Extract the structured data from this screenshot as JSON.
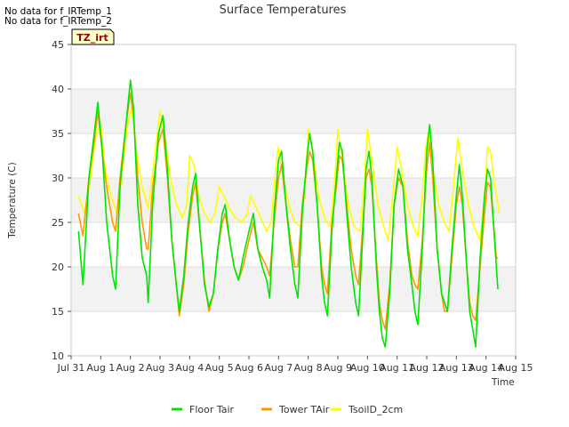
{
  "notes": [
    "No data for f_IRTemp_1",
    "No data for f_IRTemp_2"
  ],
  "badge": "TZ_irt",
  "colors": {
    "floor": "#00e600",
    "tower": "#ff9900",
    "tsoil": "#ffff00",
    "band": "#f2f2f2",
    "grid": "#dddddd",
    "badge_bg": "#ffffcc",
    "badge_text": "#990000"
  },
  "chart_data": {
    "type": "line",
    "title": "Surface Temperatures",
    "xlabel": "Time",
    "ylabel": "Temperature (C)",
    "ylim": [
      10,
      45
    ],
    "xlim": [
      0,
      15
    ],
    "yticks": [
      10,
      15,
      20,
      25,
      30,
      35,
      40,
      45
    ],
    "xticks": [
      {
        "x": 0,
        "label": "Jul 31"
      },
      {
        "x": 1,
        "label": "Aug 1"
      },
      {
        "x": 2,
        "label": "Aug 2"
      },
      {
        "x": 3,
        "label": "Aug 3"
      },
      {
        "x": 4,
        "label": "Aug 4"
      },
      {
        "x": 5,
        "label": "Aug 5"
      },
      {
        "x": 6,
        "label": "Aug 6"
      },
      {
        "x": 7,
        "label": "Aug 7"
      },
      {
        "x": 8,
        "label": "Aug 8"
      },
      {
        "x": 9,
        "label": "Aug 9"
      },
      {
        "x": 10,
        "label": "Aug 10"
      },
      {
        "x": 11,
        "label": "Aug 11"
      },
      {
        "x": 12,
        "label": "Aug 12"
      },
      {
        "x": 13,
        "label": "Aug 13"
      },
      {
        "x": 14,
        "label": "Aug 14"
      },
      {
        "x": 15,
        "label": "Aug 15"
      }
    ],
    "grid": true,
    "legend_position": "bottom",
    "series": [
      {
        "name": "Floor Tair",
        "color": "#00e600",
        "points": [
          [
            0.25,
            24
          ],
          [
            0.4,
            18
          ],
          [
            0.6,
            30
          ],
          [
            0.78,
            35
          ],
          [
            0.9,
            38.5
          ],
          [
            1.05,
            33
          ],
          [
            1.2,
            25
          ],
          [
            1.4,
            19
          ],
          [
            1.5,
            17.5
          ],
          [
            1.65,
            29
          ],
          [
            1.85,
            36
          ],
          [
            2.0,
            41
          ],
          [
            2.1,
            38
          ],
          [
            2.25,
            27
          ],
          [
            2.4,
            21
          ],
          [
            2.55,
            19
          ],
          [
            2.6,
            16
          ],
          [
            2.75,
            27
          ],
          [
            2.95,
            35
          ],
          [
            3.1,
            37
          ],
          [
            3.25,
            31
          ],
          [
            3.4,
            23
          ],
          [
            3.55,
            18
          ],
          [
            3.65,
            15
          ],
          [
            3.8,
            19
          ],
          [
            3.95,
            25
          ],
          [
            4.1,
            29
          ],
          [
            4.2,
            30.5
          ],
          [
            4.35,
            24
          ],
          [
            4.5,
            18
          ],
          [
            4.65,
            15.5
          ],
          [
            4.8,
            17
          ],
          [
            4.95,
            22
          ],
          [
            5.1,
            26
          ],
          [
            5.2,
            27
          ],
          [
            5.35,
            23
          ],
          [
            5.5,
            20
          ],
          [
            5.65,
            18.5
          ],
          [
            5.8,
            21
          ],
          [
            6.0,
            24
          ],
          [
            6.15,
            26
          ],
          [
            6.3,
            22
          ],
          [
            6.45,
            20
          ],
          [
            6.6,
            18.5
          ],
          [
            6.7,
            16.5
          ],
          [
            6.85,
            26
          ],
          [
            7.0,
            32
          ],
          [
            7.1,
            33
          ],
          [
            7.25,
            27
          ],
          [
            7.4,
            22
          ],
          [
            7.55,
            18
          ],
          [
            7.65,
            16.5
          ],
          [
            7.8,
            26
          ],
          [
            7.95,
            32
          ],
          [
            8.05,
            35
          ],
          [
            8.15,
            33
          ],
          [
            8.3,
            27
          ],
          [
            8.45,
            19
          ],
          [
            8.55,
            16
          ],
          [
            8.65,
            14.5
          ],
          [
            8.8,
            24
          ],
          [
            8.95,
            30
          ],
          [
            9.05,
            34
          ],
          [
            9.15,
            33
          ],
          [
            9.3,
            26
          ],
          [
            9.45,
            20
          ],
          [
            9.6,
            16
          ],
          [
            9.7,
            14.5
          ],
          [
            9.85,
            24
          ],
          [
            9.95,
            31
          ],
          [
            10.05,
            33
          ],
          [
            10.15,
            30
          ],
          [
            10.3,
            20
          ],
          [
            10.4,
            15
          ],
          [
            10.5,
            12
          ],
          [
            10.6,
            11
          ],
          [
            10.75,
            17
          ],
          [
            10.9,
            27
          ],
          [
            11.05,
            31
          ],
          [
            11.2,
            29
          ],
          [
            11.35,
            22
          ],
          [
            11.5,
            18
          ],
          [
            11.6,
            15
          ],
          [
            11.7,
            13.5
          ],
          [
            11.85,
            22
          ],
          [
            12.0,
            33
          ],
          [
            12.1,
            36
          ],
          [
            12.2,
            32
          ],
          [
            12.35,
            22
          ],
          [
            12.5,
            17
          ],
          [
            12.6,
            16
          ],
          [
            12.7,
            15
          ],
          [
            12.85,
            22
          ],
          [
            13.0,
            28
          ],
          [
            13.1,
            31.5
          ],
          [
            13.2,
            28
          ],
          [
            13.35,
            20
          ],
          [
            13.45,
            15
          ],
          [
            13.55,
            13
          ],
          [
            13.65,
            11
          ],
          [
            13.8,
            21
          ],
          [
            13.95,
            28
          ],
          [
            14.05,
            31
          ],
          [
            14.15,
            30
          ],
          [
            14.25,
            25
          ],
          [
            14.35,
            20
          ],
          [
            14.4,
            17.5
          ]
        ]
      },
      {
        "name": "Tower TAir",
        "color": "#ff9900",
        "points": [
          [
            0.25,
            26
          ],
          [
            0.4,
            23.5
          ],
          [
            0.6,
            30
          ],
          [
            0.78,
            34
          ],
          [
            0.9,
            37.5
          ],
          [
            1.05,
            33
          ],
          [
            1.2,
            29
          ],
          [
            1.4,
            25
          ],
          [
            1.5,
            24
          ],
          [
            1.65,
            30
          ],
          [
            1.85,
            36
          ],
          [
            2.0,
            39.5
          ],
          [
            2.1,
            37
          ],
          [
            2.25,
            30
          ],
          [
            2.4,
            25
          ],
          [
            2.55,
            22
          ],
          [
            2.6,
            22
          ],
          [
            2.75,
            29
          ],
          [
            2.95,
            34
          ],
          [
            3.1,
            35.5
          ],
          [
            3.25,
            30
          ],
          [
            3.4,
            23
          ],
          [
            3.55,
            18
          ],
          [
            3.65,
            14.5
          ],
          [
            3.8,
            18
          ],
          [
            3.95,
            24
          ],
          [
            4.1,
            28
          ],
          [
            4.2,
            29.5
          ],
          [
            4.35,
            24
          ],
          [
            4.5,
            18.5
          ],
          [
            4.65,
            15
          ],
          [
            4.8,
            17
          ],
          [
            4.95,
            22
          ],
          [
            5.1,
            25
          ],
          [
            5.2,
            26
          ],
          [
            5.35,
            23
          ],
          [
            5.5,
            20
          ],
          [
            5.65,
            18.5
          ],
          [
            5.8,
            20
          ],
          [
            6.0,
            23
          ],
          [
            6.15,
            25
          ],
          [
            6.3,
            22
          ],
          [
            6.45,
            21
          ],
          [
            6.6,
            20
          ],
          [
            6.7,
            19
          ],
          [
            6.85,
            25
          ],
          [
            7.0,
            30
          ],
          [
            7.1,
            31.5
          ],
          [
            7.25,
            27
          ],
          [
            7.4,
            23
          ],
          [
            7.55,
            20
          ],
          [
            7.65,
            20
          ],
          [
            7.8,
            27
          ],
          [
            7.95,
            31
          ],
          [
            8.05,
            33
          ],
          [
            8.15,
            32
          ],
          [
            8.3,
            27
          ],
          [
            8.45,
            20
          ],
          [
            8.55,
            18
          ],
          [
            8.65,
            17
          ],
          [
            8.8,
            25
          ],
          [
            8.95,
            29
          ],
          [
            9.05,
            32.5
          ],
          [
            9.15,
            32
          ],
          [
            9.3,
            27
          ],
          [
            9.45,
            22
          ],
          [
            9.6,
            19
          ],
          [
            9.7,
            18
          ],
          [
            9.85,
            25
          ],
          [
            9.95,
            30
          ],
          [
            10.05,
            31
          ],
          [
            10.15,
            29
          ],
          [
            10.3,
            21
          ],
          [
            10.4,
            16
          ],
          [
            10.5,
            14
          ],
          [
            10.6,
            13
          ],
          [
            10.75,
            18
          ],
          [
            10.9,
            27
          ],
          [
            11.05,
            30
          ],
          [
            11.2,
            29
          ],
          [
            11.35,
            23
          ],
          [
            11.5,
            19
          ],
          [
            11.6,
            18
          ],
          [
            11.7,
            17.5
          ],
          [
            11.85,
            23
          ],
          [
            12.0,
            31
          ],
          [
            12.1,
            34
          ],
          [
            12.2,
            30
          ],
          [
            12.35,
            22
          ],
          [
            12.5,
            17
          ],
          [
            12.6,
            15
          ],
          [
            12.7,
            15
          ],
          [
            12.85,
            21
          ],
          [
            13.0,
            27
          ],
          [
            13.1,
            29
          ],
          [
            13.2,
            27
          ],
          [
            13.35,
            20
          ],
          [
            13.45,
            16
          ],
          [
            13.55,
            14.5
          ],
          [
            13.65,
            14
          ],
          [
            13.8,
            20
          ],
          [
            13.95,
            26
          ],
          [
            14.05,
            29.5
          ],
          [
            14.15,
            29
          ],
          [
            14.25,
            25
          ],
          [
            14.35,
            21
          ],
          [
            14.4,
            21
          ]
        ]
      },
      {
        "name": "TsoilD_2cm",
        "color": "#ffff00",
        "points": [
          [
            0.25,
            28
          ],
          [
            0.45,
            26
          ],
          [
            0.65,
            30
          ],
          [
            0.85,
            35
          ],
          [
            1.0,
            36
          ],
          [
            1.15,
            31
          ],
          [
            1.35,
            28
          ],
          [
            1.55,
            26
          ],
          [
            1.7,
            30
          ],
          [
            1.9,
            36
          ],
          [
            2.05,
            38
          ],
          [
            2.2,
            33
          ],
          [
            2.4,
            29
          ],
          [
            2.6,
            26.5
          ],
          [
            2.8,
            32
          ],
          [
            3.0,
            37.5
          ],
          [
            3.15,
            35
          ],
          [
            3.35,
            30
          ],
          [
            3.55,
            27
          ],
          [
            3.75,
            25.5
          ],
          [
            3.9,
            27
          ],
          [
            4.0,
            32.5
          ],
          [
            4.15,
            31.5
          ],
          [
            4.3,
            28
          ],
          [
            4.5,
            26
          ],
          [
            4.7,
            25
          ],
          [
            4.85,
            26
          ],
          [
            5.0,
            29
          ],
          [
            5.15,
            28
          ],
          [
            5.35,
            26.5
          ],
          [
            5.55,
            25.5
          ],
          [
            5.75,
            25
          ],
          [
            5.95,
            26
          ],
          [
            6.05,
            28
          ],
          [
            6.2,
            27
          ],
          [
            6.4,
            25.5
          ],
          [
            6.6,
            24
          ],
          [
            6.75,
            25
          ],
          [
            6.9,
            31
          ],
          [
            7.0,
            33.5
          ],
          [
            7.15,
            30
          ],
          [
            7.35,
            27
          ],
          [
            7.55,
            25
          ],
          [
            7.75,
            24.5
          ],
          [
            7.9,
            29
          ],
          [
            8.0,
            35.5
          ],
          [
            8.15,
            33
          ],
          [
            8.35,
            28
          ],
          [
            8.55,
            25.5
          ],
          [
            8.75,
            24.5
          ],
          [
            8.9,
            30
          ],
          [
            9.0,
            35.5
          ],
          [
            9.15,
            32
          ],
          [
            9.35,
            27
          ],
          [
            9.55,
            24.5
          ],
          [
            9.75,
            24
          ],
          [
            9.9,
            30
          ],
          [
            10.0,
            35.5
          ],
          [
            10.15,
            32
          ],
          [
            10.35,
            27
          ],
          [
            10.55,
            24.5
          ],
          [
            10.7,
            23
          ],
          [
            10.85,
            28
          ],
          [
            11.0,
            33.5
          ],
          [
            11.15,
            31
          ],
          [
            11.35,
            27
          ],
          [
            11.55,
            24.5
          ],
          [
            11.7,
            23.5
          ],
          [
            11.85,
            28
          ],
          [
            11.95,
            33
          ],
          [
            12.05,
            35
          ],
          [
            12.2,
            31
          ],
          [
            12.4,
            27
          ],
          [
            12.6,
            25
          ],
          [
            12.75,
            24
          ],
          [
            12.9,
            29
          ],
          [
            13.05,
            34.5
          ],
          [
            13.2,
            31
          ],
          [
            13.4,
            27
          ],
          [
            13.6,
            24.5
          ],
          [
            13.8,
            23
          ],
          [
            13.95,
            28
          ],
          [
            14.05,
            33.5
          ],
          [
            14.15,
            33
          ],
          [
            14.3,
            29
          ],
          [
            14.45,
            26
          ]
        ]
      }
    ]
  }
}
